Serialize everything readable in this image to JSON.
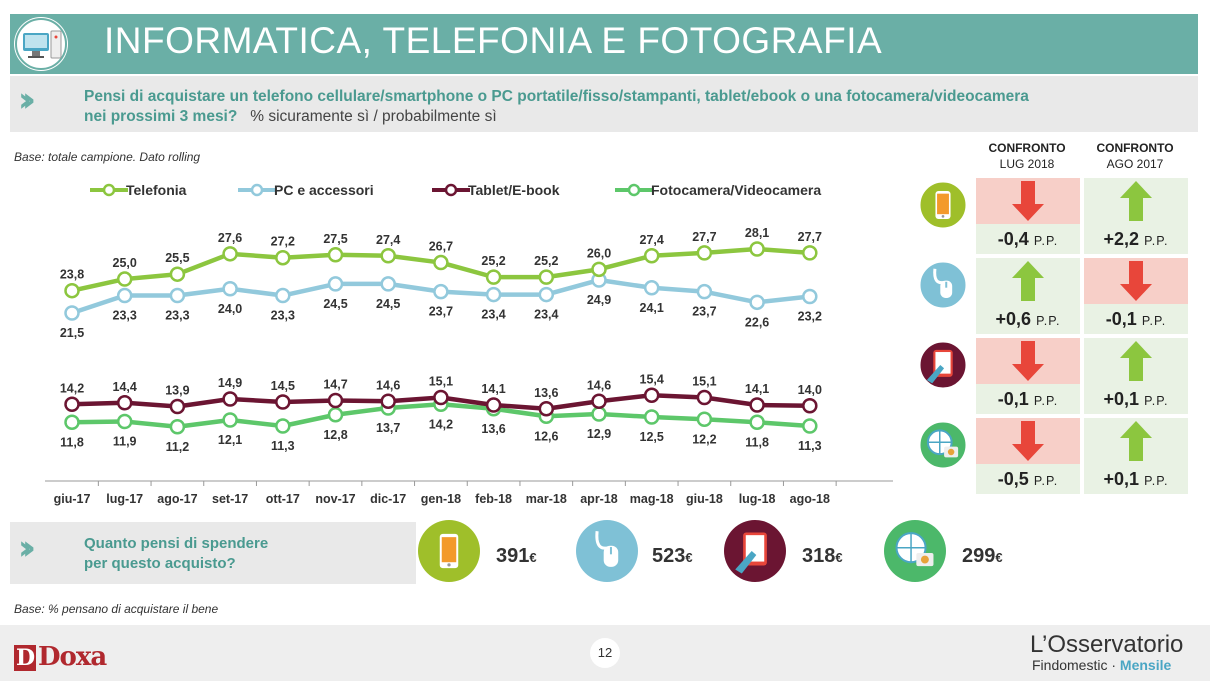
{
  "header": {
    "title": "INFORMATICA, TELEFONIA E FOTOGRAFIA"
  },
  "question": {
    "line1": "Pensi di acquistare un telefono cellulare/smartphone o PC portatile/fisso/stampanti, tablet/ebook o una fotocamera/videocamera",
    "line2": "nei prossimi 3 mesi?",
    "note": "% sicuramente sì / probabilmente sì"
  },
  "base_top": "Base: totale campione. Dato rolling",
  "colors": {
    "telefonia": "#8cc63f",
    "pc": "#92c9dc",
    "tablet": "#6b1532",
    "foto": "#5dc76a",
    "up": "#8cc63f",
    "down": "#e8463a",
    "down_bg": "#f7cfc8",
    "up_bg": "#e9f2e4"
  },
  "chart_data": {
    "type": "line",
    "categories": [
      "giu-17",
      "lug-17",
      "ago-17",
      "set-17",
      "ott-17",
      "nov-17",
      "dic-17",
      "gen-18",
      "feb-18",
      "mar-18",
      "apr-18",
      "mag-18",
      "giu-18",
      "lug-18",
      "ago-18"
    ],
    "series": [
      {
        "name": "Telefonia",
        "color": "#8cc63f",
        "values": [
          23.8,
          25.0,
          25.5,
          27.6,
          27.2,
          27.5,
          27.4,
          26.7,
          25.2,
          25.2,
          26.0,
          27.4,
          27.7,
          28.1,
          27.7
        ]
      },
      {
        "name": "PC e accessori",
        "color": "#92c9dc",
        "values": [
          21.5,
          23.3,
          23.3,
          24.0,
          23.3,
          24.5,
          24.5,
          23.7,
          23.4,
          23.4,
          24.9,
          24.1,
          23.7,
          22.6,
          23.2
        ]
      },
      {
        "name": "Tablet/E-book",
        "color": "#6b1532",
        "values": [
          14.2,
          14.4,
          13.9,
          14.9,
          14.5,
          14.7,
          14.6,
          15.1,
          14.1,
          13.6,
          14.6,
          15.4,
          15.1,
          14.1,
          14.0
        ]
      },
      {
        "name": "Fotocamera/Videocamera",
        "color": "#5dc76a",
        "values": [
          11.8,
          11.9,
          11.2,
          12.1,
          11.3,
          12.8,
          13.7,
          14.2,
          13.6,
          12.6,
          12.9,
          12.5,
          12.2,
          11.8,
          11.3
        ]
      }
    ]
  },
  "comparison": {
    "headers": [
      {
        "title": "CONFRONTO",
        "sub": "LUG 2018"
      },
      {
        "title": "CONFRONTO",
        "sub": "AGO 2017"
      }
    ],
    "rows": [
      {
        "icon": "smartphone-icon",
        "icon_color": "#9fbf2a",
        "lug": {
          "dir": "down",
          "value": "-0,4",
          "unit": "P.P."
        },
        "ago": {
          "dir": "up",
          "value": "+2,2",
          "unit": "P.P."
        }
      },
      {
        "icon": "mouse-icon",
        "icon_color": "#7fc1d6",
        "lug": {
          "dir": "up",
          "value": "+0,6",
          "unit": "P.P."
        },
        "ago": {
          "dir": "down",
          "value": "-0,1",
          "unit": "P.P."
        }
      },
      {
        "icon": "tablet-icon",
        "icon_color": "#6b1532",
        "lug": {
          "dir": "down",
          "value": "-0,1",
          "unit": "P.P."
        },
        "ago": {
          "dir": "up",
          "value": "+0,1",
          "unit": "P.P."
        }
      },
      {
        "icon": "camera-globe-icon",
        "icon_color": "#4cb86a",
        "lug": {
          "dir": "down",
          "value": "-0,5",
          "unit": "P.P."
        },
        "ago": {
          "dir": "up",
          "value": "+0,1",
          "unit": "P.P."
        }
      }
    ]
  },
  "spend": {
    "question_line1": "Quanto pensi di spendere",
    "question_line2": "per questo acquisto?",
    "items": [
      {
        "icon": "smartphone-icon",
        "color": "#9fbf2a",
        "amount": "391",
        "currency": "€"
      },
      {
        "icon": "mouse-icon",
        "color": "#7fc1d6",
        "amount": "523",
        "currency": "€"
      },
      {
        "icon": "tablet-icon",
        "color": "#6b1532",
        "amount": "318",
        "currency": "€"
      },
      {
        "icon": "camera-globe-icon",
        "color": "#4cb86a",
        "amount": "299",
        "currency": "€"
      }
    ]
  },
  "base_bottom": "Base: % pensano di acquistare il bene",
  "footer": {
    "page_number": "12",
    "brand_left_initial": "D",
    "brand_left_rest": "Doxa",
    "brand_right_line1": "L’Osservatorio",
    "brand_right_line2_a": "Findomestic · ",
    "brand_right_line2_b": "Mensile"
  }
}
